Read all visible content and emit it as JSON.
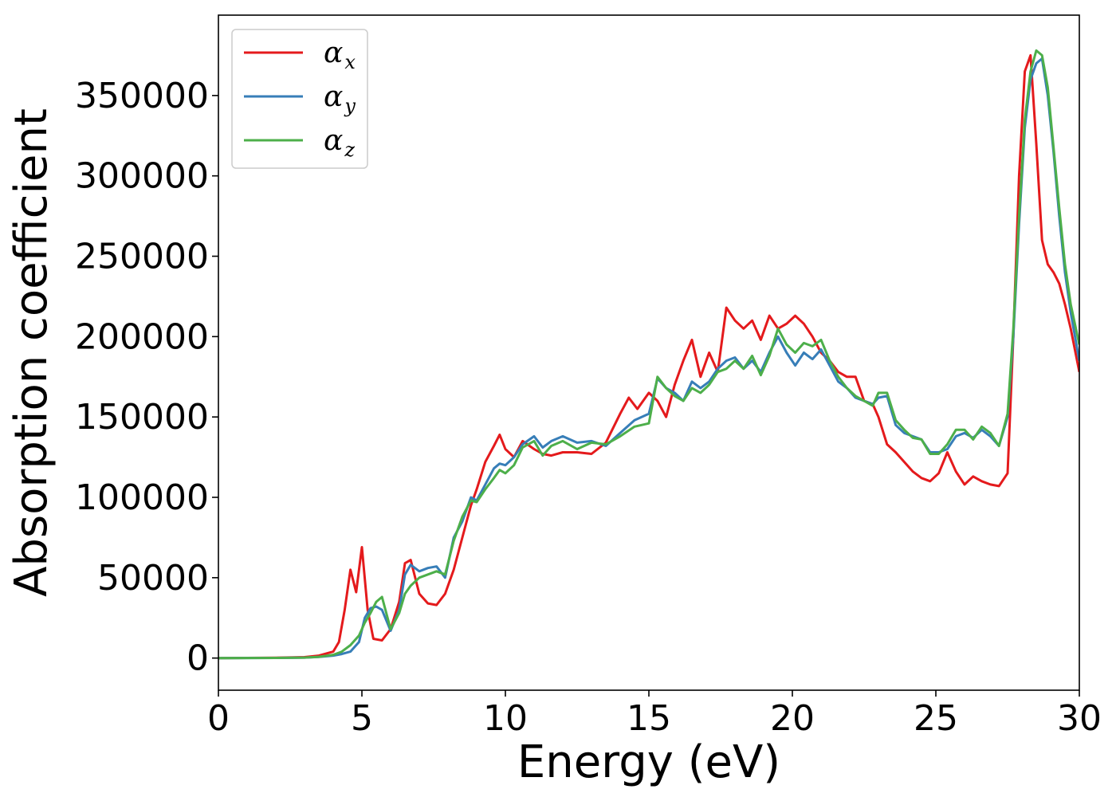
{
  "chart_data": {
    "type": "line",
    "title": "",
    "xlabel": "Energy (eV)",
    "ylabel": "Absorption coefficient",
    "xlim": [
      0,
      30
    ],
    "ylim": [
      -20000,
      400000
    ],
    "xticks": [
      "0",
      "5",
      "10",
      "15",
      "20",
      "25",
      "30"
    ],
    "yticks": [
      "0",
      "50000",
      "100000",
      "150000",
      "200000",
      "250000",
      "300000",
      "350000"
    ],
    "grid": false,
    "legend_position": "top-left",
    "series": [
      {
        "name": "α",
        "subscript": "x",
        "color": "#e41a1c",
        "x": [
          0,
          2,
          3,
          3.5,
          4,
          4.2,
          4.4,
          4.6,
          4.8,
          5.0,
          5.2,
          5.4,
          5.7,
          6.0,
          6.3,
          6.5,
          6.7,
          7.0,
          7.3,
          7.6,
          7.9,
          8.2,
          8.5,
          8.8,
          9.0,
          9.3,
          9.6,
          9.8,
          10.0,
          10.3,
          10.6,
          11.0,
          11.3,
          11.6,
          12.0,
          12.5,
          13.0,
          13.5,
          14.0,
          14.3,
          14.6,
          15.0,
          15.3,
          15.6,
          15.9,
          16.2,
          16.5,
          16.8,
          17.1,
          17.4,
          17.7,
          18.0,
          18.3,
          18.6,
          18.9,
          19.2,
          19.5,
          19.8,
          20.1,
          20.4,
          20.7,
          21.0,
          21.3,
          21.6,
          21.9,
          22.2,
          22.5,
          22.8,
          23.0,
          23.3,
          23.6,
          23.9,
          24.2,
          24.5,
          24.8,
          25.1,
          25.4,
          25.7,
          26.0,
          26.3,
          26.6,
          26.9,
          27.2,
          27.5,
          27.7,
          27.9,
          28.1,
          28.3,
          28.5,
          28.7,
          28.9,
          29.1,
          29.3,
          29.5,
          29.7,
          30.0
        ],
        "values": [
          0,
          200,
          600,
          1500,
          4000,
          10000,
          30000,
          55000,
          41000,
          69000,
          30000,
          12000,
          11000,
          18000,
          35000,
          59000,
          61000,
          40000,
          34000,
          33000,
          40000,
          55000,
          75000,
          95000,
          105000,
          122000,
          132000,
          139000,
          130000,
          125000,
          135000,
          130000,
          127000,
          126000,
          128000,
          128000,
          127000,
          134000,
          152000,
          162000,
          155000,
          165000,
          160000,
          150000,
          170000,
          185000,
          198000,
          175000,
          190000,
          178000,
          218000,
          210000,
          205000,
          210000,
          198000,
          213000,
          205000,
          208000,
          213000,
          208000,
          200000,
          190000,
          185000,
          178000,
          175000,
          175000,
          160000,
          158000,
          150000,
          133000,
          128000,
          122000,
          116000,
          112000,
          110000,
          115000,
          128000,
          116000,
          108000,
          113000,
          110000,
          108000,
          107000,
          115000,
          200000,
          300000,
          365000,
          375000,
          320000,
          260000,
          245000,
          240000,
          233000,
          220000,
          205000,
          178000
        ]
      },
      {
        "name": "α",
        "subscript": "y",
        "color": "#377eb8",
        "x": [
          0,
          2,
          3,
          3.5,
          4,
          4.3,
          4.6,
          4.9,
          5.1,
          5.3,
          5.5,
          5.7,
          6.0,
          6.3,
          6.5,
          6.7,
          7.0,
          7.3,
          7.6,
          7.9,
          8.2,
          8.5,
          8.8,
          9.0,
          9.3,
          9.6,
          9.8,
          10.0,
          10.3,
          10.6,
          11.0,
          11.3,
          11.6,
          12.0,
          12.5,
          13.0,
          13.5,
          14.0,
          14.5,
          15.0,
          15.3,
          15.6,
          15.9,
          16.2,
          16.5,
          16.8,
          17.1,
          17.4,
          17.7,
          18.0,
          18.3,
          18.6,
          18.9,
          19.2,
          19.5,
          19.8,
          20.1,
          20.4,
          20.7,
          21.0,
          21.3,
          21.6,
          21.9,
          22.2,
          22.5,
          22.8,
          23.0,
          23.3,
          23.6,
          23.9,
          24.2,
          24.5,
          24.8,
          25.1,
          25.4,
          25.7,
          26.0,
          26.3,
          26.6,
          26.9,
          27.2,
          27.5,
          27.7,
          27.9,
          28.1,
          28.3,
          28.5,
          28.7,
          28.9,
          29.1,
          29.3,
          29.5,
          29.7,
          30.0
        ],
        "values": [
          0,
          100,
          300,
          700,
          1500,
          2500,
          4000,
          10000,
          25000,
          31000,
          32000,
          30000,
          17000,
          30000,
          52000,
          58000,
          54000,
          56000,
          57000,
          50000,
          75000,
          85000,
          100000,
          98000,
          108000,
          118000,
          121000,
          120000,
          125000,
          133000,
          138000,
          131000,
          135000,
          138000,
          134000,
          135000,
          132000,
          140000,
          148000,
          152000,
          174000,
          168000,
          165000,
          160000,
          172000,
          168000,
          172000,
          180000,
          185000,
          187000,
          180000,
          185000,
          178000,
          190000,
          200000,
          190000,
          182000,
          190000,
          186000,
          192000,
          182000,
          172000,
          168000,
          162000,
          160000,
          158000,
          162000,
          163000,
          145000,
          140000,
          138000,
          136000,
          128000,
          128000,
          130000,
          138000,
          140000,
          137000,
          142000,
          138000,
          132000,
          150000,
          200000,
          270000,
          330000,
          360000,
          370000,
          373000,
          350000,
          315000,
          275000,
          240000,
          215000,
          185000
        ]
      },
      {
        "name": "α",
        "subscript": "z",
        "color": "#4daf4a",
        "x": [
          0,
          2,
          3,
          3.5,
          4,
          4.3,
          4.6,
          4.9,
          5.1,
          5.3,
          5.5,
          5.7,
          6.0,
          6.3,
          6.5,
          6.7,
          7.0,
          7.3,
          7.6,
          7.9,
          8.2,
          8.5,
          8.8,
          9.0,
          9.3,
          9.6,
          9.8,
          10.0,
          10.3,
          10.6,
          11.0,
          11.3,
          11.6,
          12.0,
          12.5,
          13.0,
          13.5,
          14.0,
          14.5,
          15.0,
          15.3,
          15.6,
          15.9,
          16.2,
          16.5,
          16.8,
          17.1,
          17.4,
          17.7,
          18.0,
          18.3,
          18.6,
          18.9,
          19.2,
          19.5,
          19.8,
          20.1,
          20.4,
          20.7,
          21.0,
          21.3,
          21.6,
          21.9,
          22.2,
          22.5,
          22.8,
          23.0,
          23.3,
          23.6,
          23.9,
          24.2,
          24.5,
          24.8,
          25.1,
          25.4,
          25.7,
          26.0,
          26.3,
          26.6,
          26.9,
          27.2,
          27.5,
          27.7,
          27.9,
          28.1,
          28.3,
          28.5,
          28.7,
          28.9,
          29.1,
          29.3,
          29.5,
          29.7,
          30.0
        ],
        "values": [
          0,
          100,
          300,
          800,
          2000,
          4000,
          8000,
          14000,
          22000,
          28000,
          35000,
          38000,
          18000,
          28000,
          40000,
          45000,
          50000,
          52000,
          54000,
          52000,
          73000,
          88000,
          98000,
          97000,
          105000,
          112000,
          117000,
          115000,
          120000,
          131000,
          135000,
          126000,
          132000,
          135000,
          130000,
          134000,
          133000,
          138000,
          144000,
          146000,
          175000,
          168000,
          163000,
          160000,
          168000,
          165000,
          170000,
          178000,
          180000,
          185000,
          180000,
          188000,
          176000,
          188000,
          205000,
          195000,
          190000,
          196000,
          194000,
          198000,
          185000,
          175000,
          168000,
          163000,
          160000,
          157000,
          165000,
          165000,
          148000,
          142000,
          137000,
          136000,
          127000,
          127000,
          133000,
          142000,
          142000,
          136000,
          144000,
          140000,
          132000,
          152000,
          205000,
          275000,
          335000,
          365000,
          378000,
          375000,
          355000,
          318000,
          280000,
          245000,
          220000,
          195000
        ]
      }
    ]
  }
}
